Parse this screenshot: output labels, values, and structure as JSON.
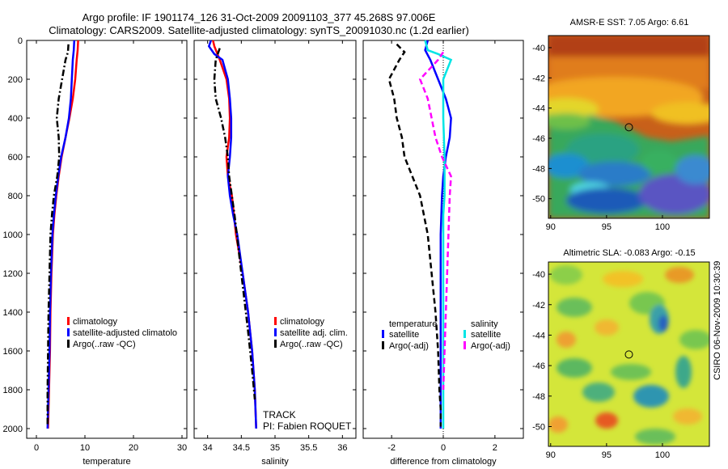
{
  "title": {
    "line1": "Argo profile: IF 1901174_126 31-Oct-2009 20091103_377 45.268S 97.006E",
    "line2": "Climatology: CARS2009. Satellite-adjusted climatology: synTS_20091030.nc (1.2d earlier)"
  },
  "colors": {
    "climatology": "#ff0000",
    "satellite_adj": "#0000ff",
    "argo": "#000000",
    "salinity_satellite": "#00e5e5",
    "salinity_argo": "#ff00ff"
  },
  "chart_data": [
    {
      "type": "line",
      "id": "temperature",
      "xlabel": "temperature",
      "xlim": [
        -2,
        31
      ],
      "ylim": [
        2050,
        0
      ],
      "xticks": [
        0,
        10,
        20,
        30
      ],
      "yticks": [
        0,
        200,
        400,
        600,
        800,
        1000,
        1200,
        1400,
        1600,
        1800,
        2000
      ],
      "legend": [
        "climatology",
        "satellite-adjusted climatolo",
        "Argo(..raw -QC)"
      ],
      "series": [
        {
          "name": "climatology",
          "style": "solid",
          "color": "#ff0000",
          "x": [
            8.6,
            8.5,
            8.3,
            8.0,
            7.5,
            6.8,
            6.0,
            5.2,
            4.6,
            4.1,
            3.7,
            3.4,
            3.1,
            2.9,
            2.8,
            2.6,
            2.5,
            2.4
          ],
          "y": [
            0,
            50,
            100,
            200,
            300,
            400,
            500,
            600,
            700,
            800,
            900,
            1000,
            1200,
            1400,
            1600,
            1800,
            1900,
            2000
          ]
        },
        {
          "name": "satellite-adjusted climatolo",
          "style": "solid",
          "color": "#0000ff",
          "x": [
            7.8,
            7.7,
            7.5,
            7.3,
            7.1,
            6.7,
            6.0,
            5.1,
            4.5,
            4.0,
            3.6,
            3.3,
            3.0,
            2.8,
            2.7,
            2.5,
            2.4,
            2.3
          ],
          "y": [
            0,
            50,
            100,
            200,
            300,
            400,
            500,
            600,
            700,
            800,
            900,
            1000,
            1200,
            1400,
            1600,
            1800,
            1900,
            2000
          ]
        },
        {
          "name": "Argo(..raw -QC)",
          "style": "dashdot",
          "color": "#000000",
          "x": [
            6.6,
            6.5,
            6.0,
            5.3,
            4.6,
            4.2,
            4.6,
            4.7,
            4.3,
            3.6,
            3.2,
            2.9,
            2.7,
            2.5,
            2.4,
            2.3,
            2.3
          ],
          "y": [
            20,
            60,
            100,
            200,
            300,
            400,
            500,
            600,
            700,
            800,
            900,
            1000,
            1200,
            1400,
            1600,
            1800,
            1990
          ]
        }
      ]
    },
    {
      "type": "line",
      "id": "salinity",
      "xlabel": "salinity",
      "xlim": [
        33.8,
        36.2
      ],
      "ylim": [
        2050,
        0
      ],
      "xticks": [
        34,
        34.5,
        35,
        35.5,
        36
      ],
      "xticklabels": [
        "34",
        "34.5",
        "35",
        "35.5",
        "36"
      ],
      "legend": [
        "climatology",
        "satellite adj. clim.",
        "Argo(..raw -QC)"
      ],
      "annotations": [
        "TRACK",
        "PI: Fabien ROQUET"
      ],
      "series": [
        {
          "name": "climatology",
          "style": "solid",
          "color": "#ff0000",
          "x": [
            34.08,
            34.1,
            34.18,
            34.28,
            34.32,
            34.33,
            34.32,
            34.28,
            34.3,
            34.36,
            34.42,
            34.52,
            34.6,
            34.66,
            34.7,
            34.72
          ],
          "y": [
            0,
            30,
            100,
            200,
            300,
            400,
            500,
            600,
            700,
            800,
            1000,
            1200,
            1400,
            1600,
            1800,
            2000
          ]
        },
        {
          "name": "satellite adj. clim.",
          "style": "solid",
          "color": "#0000ff",
          "x": [
            34.05,
            34.02,
            34.1,
            34.22,
            34.3,
            34.33,
            34.35,
            34.35,
            34.33,
            34.3,
            34.33,
            34.38,
            34.44,
            34.52,
            34.6,
            34.66,
            34.7,
            34.72
          ],
          "y": [
            0,
            30,
            70,
            100,
            200,
            300,
            400,
            500,
            600,
            700,
            800,
            900,
            1000,
            1200,
            1400,
            1600,
            1800,
            2000
          ]
        },
        {
          "name": "Argo(..raw -QC)",
          "style": "dashdot",
          "color": "#000000",
          "x": [
            34.18,
            34.12,
            34.1,
            34.12,
            34.2,
            34.26,
            34.3,
            34.32,
            34.4,
            34.5,
            34.6,
            34.66,
            34.7
          ],
          "y": [
            40,
            100,
            200,
            300,
            400,
            500,
            600,
            700,
            900,
            1200,
            1500,
            1700,
            1850
          ]
        }
      ]
    },
    {
      "type": "line",
      "id": "difference",
      "xlabel": "difference from climatology",
      "xlim": [
        -3.1,
        3.1
      ],
      "ylim": [
        2050,
        0
      ],
      "xticks": [
        -2,
        0,
        2
      ],
      "legend_temperature": {
        "heading": "temperature",
        "entries": [
          "satellite",
          "Argo(-adj)"
        ]
      },
      "legend_salinity": {
        "heading": "salinity",
        "entries": [
          "satellite",
          "Argo(-adj)"
        ]
      },
      "series": [
        {
          "name": "temperature satellite",
          "style": "solid",
          "color": "#0000ff",
          "x": [
            -0.6,
            -0.7,
            -0.5,
            -0.2,
            0.1,
            0.3,
            0.25,
            0.1,
            0.0,
            -0.05,
            -0.1,
            -0.1,
            -0.1,
            -0.1,
            -0.1,
            -0.1,
            -0.1
          ],
          "y": [
            0,
            50,
            100,
            200,
            300,
            400,
            500,
            600,
            700,
            800,
            1000,
            1200,
            1400,
            1600,
            1800,
            1900,
            2000
          ]
        },
        {
          "name": "temperature Argo(-adj)",
          "style": "dashed",
          "color": "#000000",
          "x": [
            -1.8,
            -1.5,
            -1.7,
            -2.1,
            -1.9,
            -1.8,
            -1.6,
            -1.5,
            -1.2,
            -0.9,
            -0.6,
            -0.45,
            -0.3,
            -0.2,
            -0.15,
            -0.1,
            -0.1
          ],
          "y": [
            20,
            60,
            100,
            200,
            300,
            400,
            500,
            600,
            700,
            800,
            1000,
            1200,
            1400,
            1600,
            1800,
            1900,
            1990
          ]
        },
        {
          "name": "salinity satellite",
          "style": "solid",
          "color": "#00e5e5",
          "x": [
            -0.7,
            -0.6,
            -0.2,
            0.3,
            0.0,
            0.0,
            0.05,
            0.05,
            0.0,
            0.0,
            0.0,
            0.0,
            0.0,
            0.0,
            0.0,
            0.0,
            0.0
          ],
          "y": [
            0,
            50,
            70,
            100,
            200,
            400,
            600,
            800,
            900,
            1000,
            1200,
            1400,
            1600,
            1800,
            1900,
            1950,
            2000
          ]
        },
        {
          "name": "salinity Argo(-adj)",
          "style": "dashed",
          "color": "#ff00ff",
          "x": [
            0.0,
            -0.2,
            -0.9,
            -0.6,
            -0.45,
            -0.3,
            -0.05,
            0.3,
            0.25,
            0.2,
            0.15,
            0.1,
            0.05,
            0.0
          ],
          "y": [
            60,
            100,
            200,
            300,
            400,
            500,
            600,
            700,
            800,
            1000,
            1200,
            1400,
            1600,
            1800
          ]
        }
      ]
    },
    {
      "type": "heatmap",
      "id": "sst_map",
      "title": "AMSR-E SST: 7.05 Argo: 6.61",
      "xticks": [
        90,
        95,
        100
      ],
      "yticks": [
        -40,
        -42,
        -44,
        -46,
        -48,
        -50
      ],
      "xlim": [
        89.8,
        104.2
      ],
      "ylim": [
        -51.3,
        -39.2
      ],
      "marker": {
        "lon": 97.0,
        "lat": -45.27
      }
    },
    {
      "type": "heatmap",
      "id": "sla_map",
      "title": "Altimetric SLA: -0.083 Argo: -0.15",
      "xticks": [
        90,
        95,
        100
      ],
      "yticks": [
        -40,
        -42,
        -44,
        -46,
        -48,
        -50
      ],
      "xlim": [
        89.8,
        104.2
      ],
      "ylim": [
        -51.3,
        -39.2
      ],
      "marker": {
        "lon": 97.0,
        "lat": -45.27
      }
    }
  ],
  "stamp": "CSIRO 06-Nov-2009 10:30:39"
}
